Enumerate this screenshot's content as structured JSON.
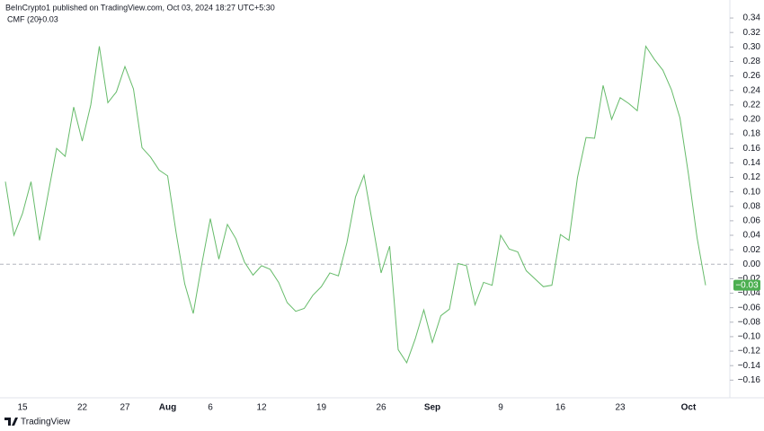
{
  "chart_data": {
    "type": "line",
    "subtitle": "BeInCrypto1 published on TradingView.com, Oct 03, 2024 18:27 UTC+5:30",
    "source": "TradingView",
    "categories": [
      null,
      null,
      "15",
      null,
      null,
      null,
      null,
      null,
      null,
      "22",
      null,
      null,
      null,
      null,
      "27",
      null,
      null,
      null,
      null,
      "Aug",
      null,
      null,
      null,
      null,
      "6",
      null,
      null,
      null,
      null,
      null,
      "12",
      null,
      null,
      null,
      null,
      null,
      null,
      "19",
      null,
      null,
      null,
      null,
      null,
      null,
      "26",
      null,
      null,
      null,
      null,
      null,
      "Sep",
      null,
      null,
      null,
      null,
      null,
      null,
      null,
      "9",
      null,
      null,
      null,
      null,
      null,
      null,
      "16",
      null,
      null,
      null,
      null,
      null,
      null,
      "23",
      null,
      null,
      null,
      null,
      null,
      null,
      null,
      "Oct",
      null,
      null
    ],
    "series": [
      {
        "name": "CMF (20)",
        "color": "#66bb6a",
        "values": [
          0.114,
          0.04,
          0.07,
          0.114,
          0.033,
          0.097,
          0.16,
          0.149,
          0.217,
          0.17,
          0.22,
          0.301,
          0.223,
          0.238,
          0.273,
          0.242,
          0.161,
          0.148,
          0.13,
          0.122,
          0.043,
          -0.027,
          -0.068,
          0,
          0.063,
          0.007,
          0.055,
          0.035,
          0.003,
          -0.015,
          -0.002,
          -0.007,
          -0.025,
          -0.053,
          -0.065,
          -0.061,
          -0.043,
          -0.031,
          -0.012,
          -0.016,
          0.03,
          0.093,
          0.123,
          0.056,
          -0.012,
          0.025,
          -0.118,
          -0.136,
          -0.103,
          -0.063,
          -0.108,
          -0.071,
          -0.062,
          0.001,
          -0.002,
          -0.056,
          -0.025,
          -0.029,
          0.04,
          0.021,
          0.017,
          -0.009,
          -0.02,
          -0.031,
          -0.029,
          0.041,
          0.033,
          0.12,
          0.175,
          0.174,
          0.247,
          0.2,
          0.23,
          0.222,
          0.212,
          0.301,
          0.283,
          0.268,
          0.241,
          0.202,
          0.124,
          0.037,
          -0.029
        ],
        "value_labels": [
          null,
          null,
          null,
          null,
          null,
          null,
          null,
          null,
          null,
          null,
          null,
          null,
          null,
          null,
          null,
          null,
          null,
          null,
          null,
          null,
          null,
          null,
          null,
          null,
          null,
          null,
          null,
          null,
          null,
          null,
          null,
          null,
          null,
          null,
          null,
          null,
          null,
          null,
          null,
          null,
          null,
          null,
          null,
          null,
          null,
          null,
          null,
          null,
          null,
          null,
          null,
          null,
          null,
          null,
          null,
          null,
          null,
          null,
          null,
          null,
          null,
          null,
          null,
          null,
          null,
          null,
          null,
          null,
          null,
          null,
          null,
          null,
          null,
          null,
          null,
          null,
          null,
          null,
          null,
          null,
          null,
          null,
          "−0.03"
        ]
      }
    ],
    "ylim": [
      -0.172,
      0.35
    ],
    "yticks": [
      {
        "value": 0.34,
        "label": "0.34"
      },
      {
        "value": 0.32,
        "label": "0.32"
      },
      {
        "value": 0.3,
        "label": "0.30"
      },
      {
        "value": 0.28,
        "label": "0.28"
      },
      {
        "value": 0.26,
        "label": "0.26"
      },
      {
        "value": 0.24,
        "label": "0.24"
      },
      {
        "value": 0.22,
        "label": "0.22"
      },
      {
        "value": 0.2,
        "label": "0.20"
      },
      {
        "value": 0.18,
        "label": "0.18"
      },
      {
        "value": 0.16,
        "label": "0.16"
      },
      {
        "value": 0.14,
        "label": "0.14"
      },
      {
        "value": 0.12,
        "label": "0.12"
      },
      {
        "value": 0.1,
        "label": "0.10"
      },
      {
        "value": 0.08,
        "label": "0.08"
      },
      {
        "value": 0.06,
        "label": "0.06"
      },
      {
        "value": 0.04,
        "label": "0.04"
      },
      {
        "value": 0.02,
        "label": "0.02"
      },
      {
        "value": 0,
        "label": "0.00"
      },
      {
        "value": -0.02,
        "label": "−0.02"
      },
      {
        "value": -0.04,
        "label": "−0.04"
      },
      {
        "value": -0.06,
        "label": "−0.06"
      },
      {
        "value": -0.08,
        "label": "−0.08"
      },
      {
        "value": -0.1,
        "label": "−0.10"
      },
      {
        "value": -0.12,
        "label": "−0.12"
      },
      {
        "value": -0.14,
        "label": "−0.14"
      },
      {
        "value": -0.16,
        "label": "−0.16"
      }
    ],
    "baseline": 0,
    "badge_color": "#4caf50"
  }
}
